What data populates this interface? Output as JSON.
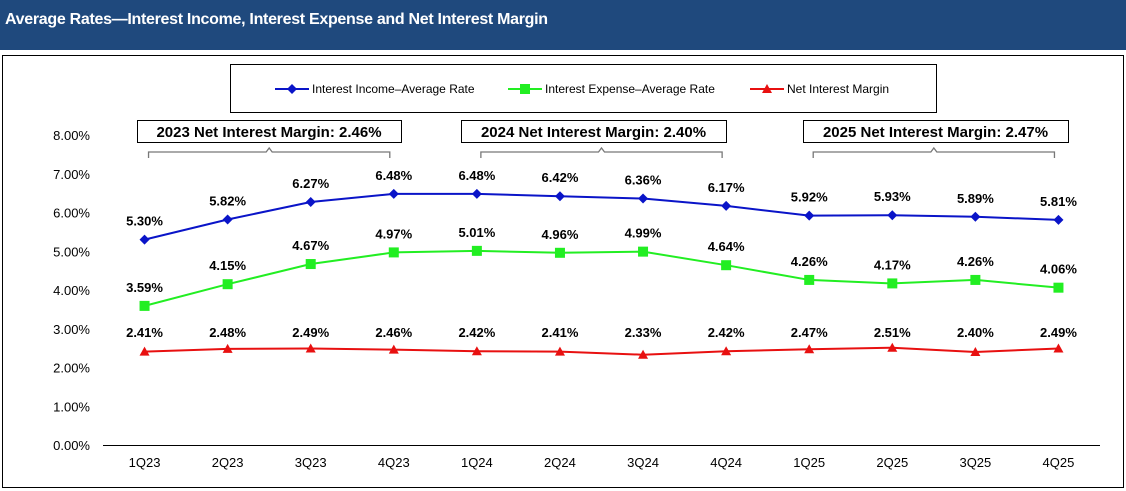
{
  "header": {
    "title": "Average Rates—Interest Income, Interest Expense and Net Interest Margin"
  },
  "chart_data": {
    "type": "line",
    "categories": [
      "1Q23",
      "2Q23",
      "3Q23",
      "4Q23",
      "1Q24",
      "2Q24",
      "3Q24",
      "4Q24",
      "1Q25",
      "2Q25",
      "3Q25",
      "4Q25"
    ],
    "ylim": [
      0,
      8
    ],
    "yticks": [
      "0.00%",
      "1.00%",
      "2.00%",
      "3.00%",
      "4.00%",
      "5.00%",
      "6.00%",
      "7.00%",
      "8.00%"
    ],
    "grid": false,
    "legend_placement": "top-center",
    "series": [
      {
        "name": "Interest Income–Average Rate",
        "color": "#0A14C8",
        "marker": "diamond",
        "values": [
          5.3,
          5.82,
          6.27,
          6.48,
          6.48,
          6.42,
          6.36,
          6.17,
          5.92,
          5.93,
          5.89,
          5.81
        ],
        "labels": [
          "5.30%",
          "5.82%",
          "6.27%",
          "6.48%",
          "6.48%",
          "6.42%",
          "6.36%",
          "6.17%",
          "5.92%",
          "5.93%",
          "5.89%",
          "5.81%"
        ]
      },
      {
        "name": "Interest Expense–Average Rate",
        "color": "#22EE22",
        "marker": "square",
        "values": [
          3.59,
          4.15,
          4.67,
          4.97,
          5.01,
          4.96,
          4.99,
          4.64,
          4.26,
          4.17,
          4.26,
          4.06
        ],
        "labels": [
          "3.59%",
          "4.15%",
          "4.67%",
          "4.97%",
          "5.01%",
          "4.96%",
          "4.99%",
          "4.64%",
          "4.26%",
          "4.17%",
          "4.26%",
          "4.06%"
        ]
      },
      {
        "name": "Net Interest Margin",
        "color": "#E81010",
        "marker": "triangle",
        "values": [
          2.41,
          2.48,
          2.49,
          2.46,
          2.42,
          2.41,
          2.33,
          2.42,
          2.47,
          2.51,
          2.4,
          2.49
        ],
        "labels": [
          "2.41%",
          "2.48%",
          "2.49%",
          "2.46%",
          "2.42%",
          "2.41%",
          "2.33%",
          "2.42%",
          "2.47%",
          "2.51%",
          "2.40%",
          "2.49%"
        ]
      }
    ],
    "annotations": [
      {
        "text": "2023 Net Interest Margin:  2.46%",
        "from": "1Q23",
        "to": "4Q23"
      },
      {
        "text": "2024 Net Interest Margin:  2.40%",
        "from": "1Q24",
        "to": "4Q24"
      },
      {
        "text": "2025 Net Interest Margin:  2.47%",
        "from": "1Q25",
        "to": "4Q25"
      }
    ]
  }
}
